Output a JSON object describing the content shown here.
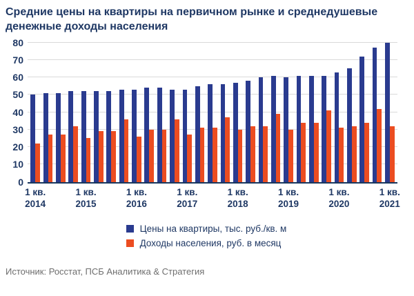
{
  "source": "Источник: Росстат, ПСБ Аналитика & Стратегия",
  "colors": {
    "title_text": "#1F3864",
    "axis_text": "#1F3864",
    "gridline": "#D9D9D9",
    "axis_line": "#17365D",
    "source_text": "#6E6E6E"
  },
  "chart_data": {
    "type": "bar",
    "title": "Средние цены на квартиры на первичном рынке и среднедушевые денежные доходы населения",
    "ylim": [
      0,
      80
    ],
    "yticks": [
      0,
      10,
      20,
      30,
      40,
      50,
      60,
      70,
      80
    ],
    "grid": "horizontal",
    "legend_position": "bottom",
    "categories": [
      "1 кв. 2014",
      "2 кв. 2014",
      "3 кв. 2014",
      "4 кв. 2014",
      "1 кв. 2015",
      "2 кв. 2015",
      "3 кв. 2015",
      "4 кв. 2015",
      "1 кв. 2016",
      "2 кв. 2016",
      "3 кв. 2016",
      "4 кв. 2016",
      "1 кв. 2017",
      "2 кв. 2017",
      "3 кв. 2017",
      "4 кв. 2017",
      "1 кв. 2018",
      "2 кв. 2018",
      "3 кв. 2018",
      "4 кв. 2018",
      "1 кв. 2019",
      "2 кв. 2019",
      "3 кв. 2019",
      "4 кв. 2019",
      "1 кв. 2020",
      "2 кв. 2020",
      "3 кв. 2020",
      "4 кв. 2020",
      "1 кв. 2021"
    ],
    "xticks": [
      {
        "index": 0,
        "line1": "1 кв.",
        "line2": "2014"
      },
      {
        "index": 4,
        "line1": "1 кв.",
        "line2": "2015"
      },
      {
        "index": 8,
        "line1": "1 кв.",
        "line2": "2016"
      },
      {
        "index": 12,
        "line1": "1 кв.",
        "line2": "2017"
      },
      {
        "index": 16,
        "line1": "1 кв.",
        "line2": "2018"
      },
      {
        "index": 20,
        "line1": "1 кв.",
        "line2": "2019"
      },
      {
        "index": 24,
        "line1": "1 кв.",
        "line2": "2020"
      },
      {
        "index": 28,
        "line1": "1 кв.",
        "line2": "2021"
      }
    ],
    "series": [
      {
        "name": "Цены на квартиры, тыс. руб./кв. м",
        "color": "#2A3B8F",
        "values": [
          50,
          51,
          51,
          52,
          52,
          52,
          52,
          53,
          53,
          54,
          54,
          53,
          53,
          55,
          56,
          56,
          57,
          58,
          60,
          61,
          60,
          61,
          61,
          61,
          63,
          65,
          72,
          77,
          80
        ]
      },
      {
        "name": "Доходы населения, руб. в месяц",
        "color": "#EC4D21",
        "values": [
          22,
          27,
          27,
          32,
          25,
          29,
          29,
          36,
          26,
          30,
          30,
          36,
          27,
          31,
          31,
          37,
          30,
          32,
          32,
          39,
          30,
          34,
          34,
          41,
          31,
          32,
          34,
          42,
          32
        ]
      }
    ]
  }
}
